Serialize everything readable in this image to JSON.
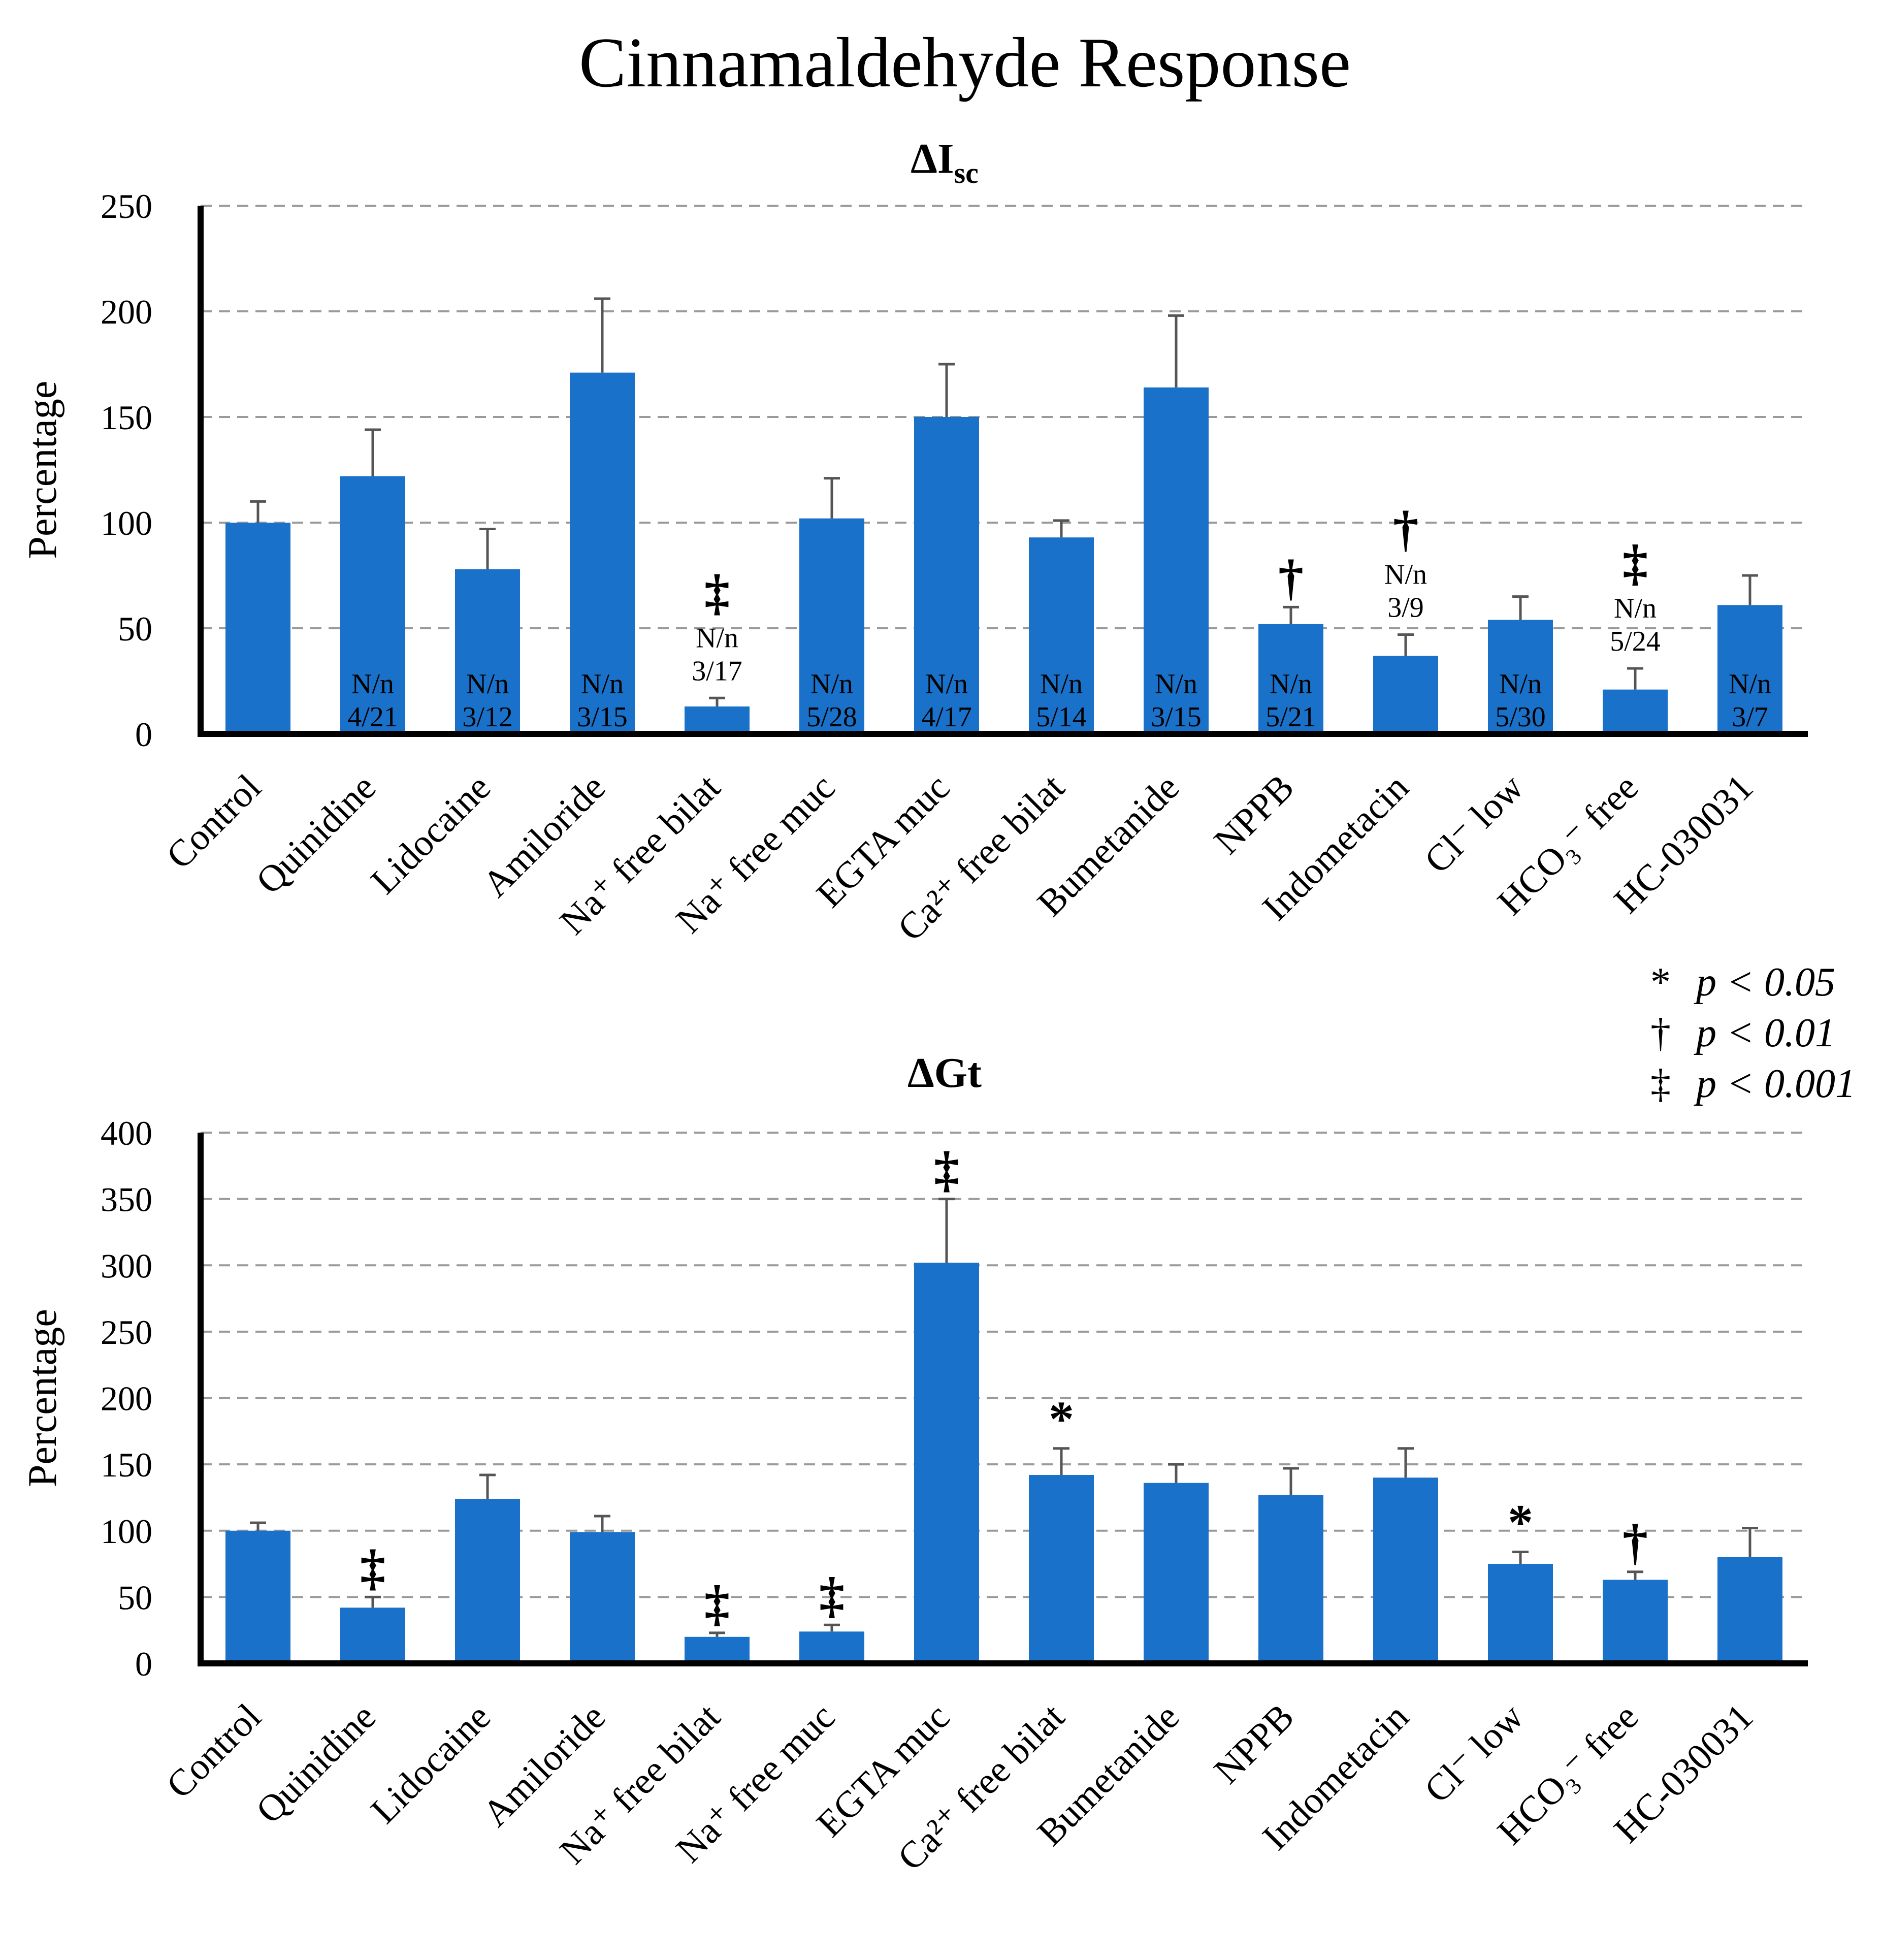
{
  "title": "Cinnamaldehyde Response",
  "colors": {
    "bar": "#1a71c9",
    "axis": "#000000",
    "grid": "#9a9a9a",
    "error": "#555555"
  },
  "legend": {
    "items": [
      {
        "symbol": "*",
        "label": "p < 0.05"
      },
      {
        "symbol": "†",
        "label": "p < 0.01"
      },
      {
        "symbol": "‡",
        "label": "p < 0.001"
      }
    ]
  },
  "chart_data": [
    {
      "type": "bar",
      "title": "ΔIsc",
      "title_main": "ΔI",
      "title_sub": "sc",
      "ylabel": "Percentage",
      "ylim": [
        0,
        250
      ],
      "yticks": [
        0,
        50,
        100,
        150,
        200,
        250
      ],
      "grid": true,
      "categories": [
        "Control",
        "Quinidine",
        "Lidocaine",
        "Amiloride",
        "Na⁺ free bilat",
        "Na⁺ free muc",
        "EGTA muc",
        "Ca²⁺ free bilat",
        "Bumetanide",
        "NPPB",
        "Indometacin",
        "Cl⁻ low",
        "HCO₃⁻ free",
        "HC-030031"
      ],
      "values": [
        100,
        122,
        78,
        171,
        13,
        102,
        150,
        93,
        164,
        52,
        37,
        54,
        21,
        61
      ],
      "errors": [
        10,
        22,
        19,
        35,
        4,
        19,
        25,
        8,
        34,
        8,
        10,
        11,
        10,
        14
      ],
      "n_label": "N/n",
      "n_values": [
        "",
        "4/21",
        "3/12",
        "3/15",
        "3/17",
        "5/28",
        "4/17",
        "5/14",
        "3/15",
        "5/21",
        "3/9",
        "5/30",
        "5/24",
        "3/7"
      ],
      "significance": [
        "",
        "",
        "",
        "",
        "‡",
        "",
        "",
        "",
        "",
        "†",
        "†",
        "",
        "‡",
        ""
      ]
    },
    {
      "type": "bar",
      "title": "ΔGt",
      "ylabel": "Percentage",
      "ylim": [
        0,
        400
      ],
      "yticks": [
        0,
        50,
        100,
        150,
        200,
        250,
        300,
        350,
        400
      ],
      "grid": true,
      "categories": [
        "Control",
        "Quinidine",
        "Lidocaine",
        "Amiloride",
        "Na⁺ free bilat",
        "Na⁺ free muc",
        "EGTA muc",
        "Ca²⁺ free bilat",
        "Bumetanide",
        "NPPB",
        "Indometacin",
        "Cl⁻ low",
        "HCO₃⁻ free",
        "HC-030031"
      ],
      "values": [
        100,
        42,
        124,
        99,
        20,
        24,
        302,
        142,
        136,
        127,
        140,
        75,
        63,
        80
      ],
      "errors": [
        6,
        8,
        18,
        12,
        3,
        5,
        48,
        20,
        14,
        20,
        22,
        9,
        6,
        22
      ],
      "significance": [
        "",
        "‡",
        "",
        "",
        "‡",
        "‡",
        "‡",
        "*",
        "",
        "",
        "",
        "*",
        "†",
        ""
      ]
    }
  ]
}
